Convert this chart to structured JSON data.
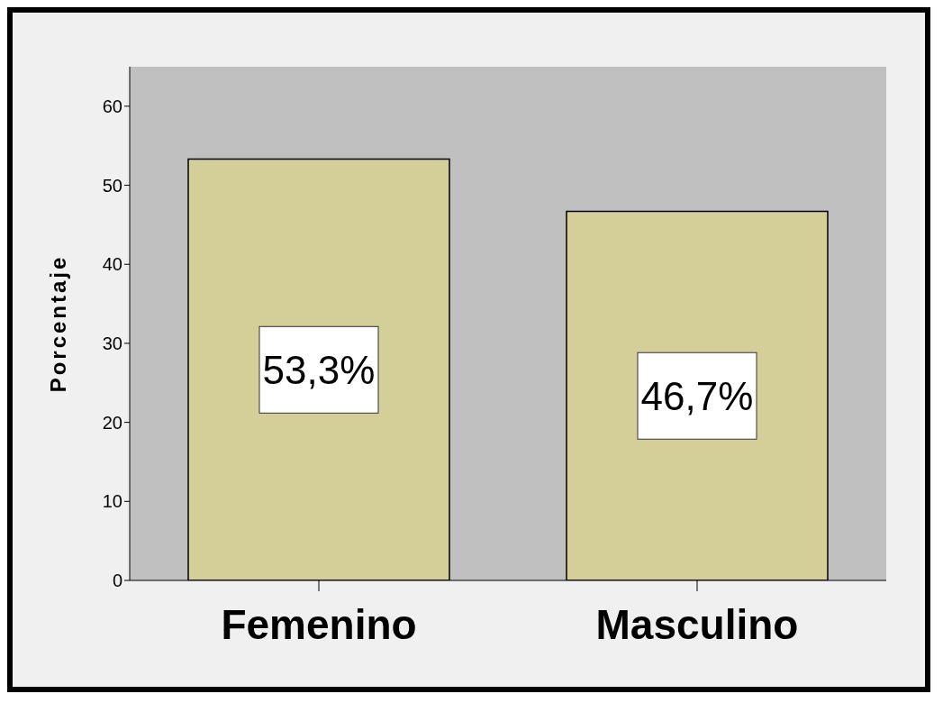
{
  "chart_data": {
    "type": "bar",
    "ylabel": "Porcentaje",
    "categories": [
      "Femenino",
      "Masculino"
    ],
    "values": [
      53.3,
      46.7
    ],
    "color": "#d4cf98",
    "value_labels": [
      "53,3%",
      "46,7%"
    ],
    "ylim": [
      0,
      65
    ],
    "yticks": [
      0,
      10,
      20,
      30,
      40,
      50,
      60
    ]
  }
}
